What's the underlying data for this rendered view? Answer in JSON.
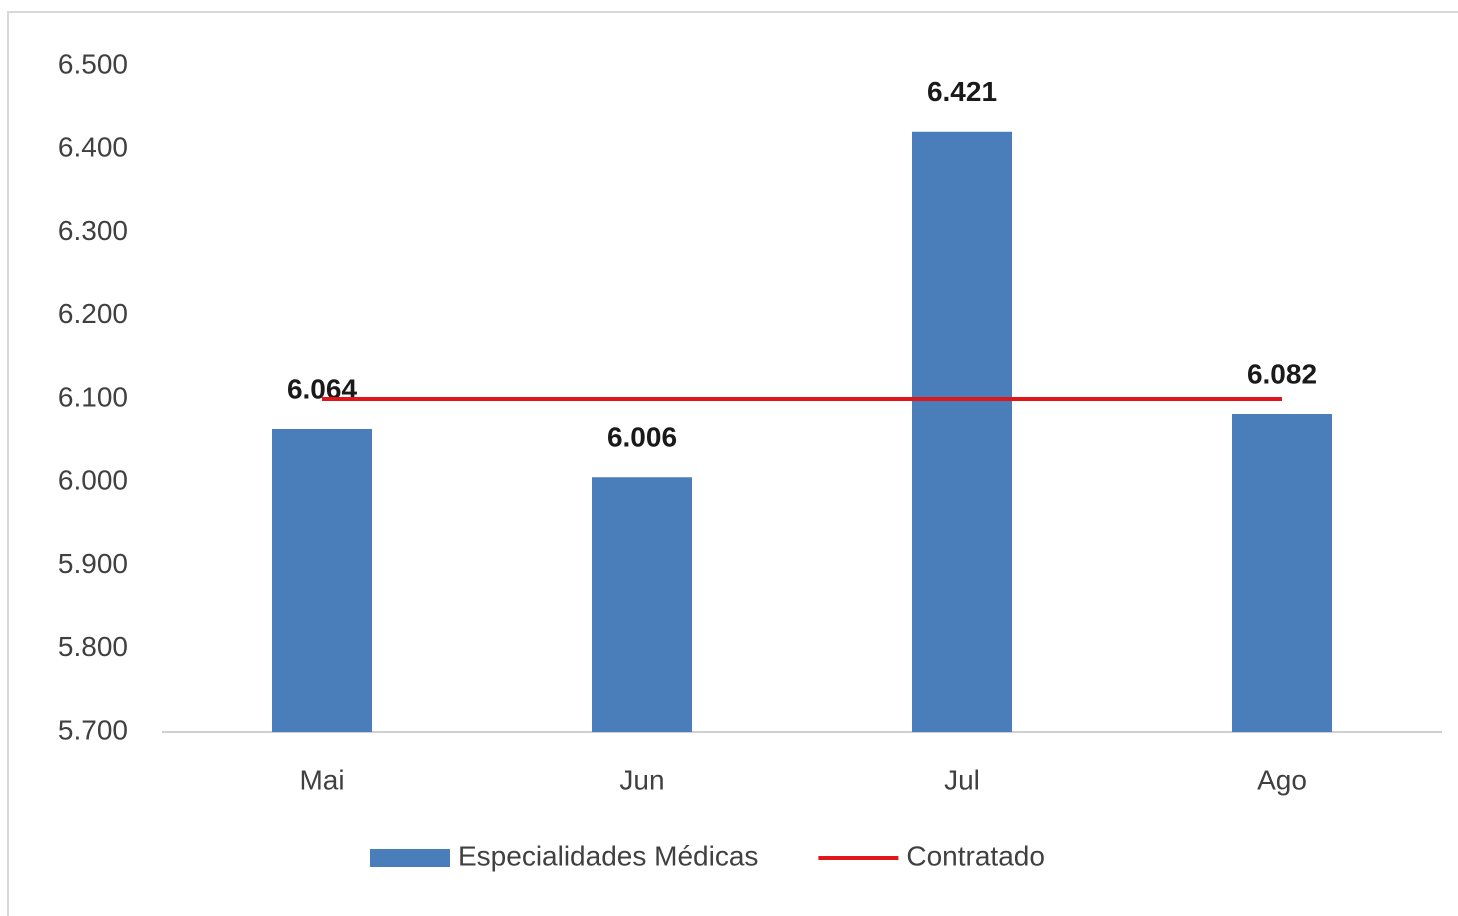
{
  "chart_data": {
    "type": "bar",
    "categories": [
      "Mai",
      "Jun",
      "Jul",
      "Ago"
    ],
    "series": [
      {
        "name": "Especialidades Médicas",
        "type": "bar",
        "color": "#4a7ebb",
        "values": [
          6064,
          6006,
          6421,
          6082
        ],
        "value_labels": [
          "6.064",
          "6.006",
          "6.421",
          "6.082"
        ]
      },
      {
        "name": "Contratado",
        "type": "line",
        "color": "#e0161b",
        "values": [
          6100,
          6100,
          6100,
          6100
        ]
      }
    ],
    "ylim": [
      5700,
      6500
    ],
    "yticks": [
      {
        "value": 5700,
        "label": "5.700"
      },
      {
        "value": 5800,
        "label": "5.800"
      },
      {
        "value": 5900,
        "label": "5.900"
      },
      {
        "value": 6000,
        "label": "6.000"
      },
      {
        "value": 6100,
        "label": "6.100"
      },
      {
        "value": 6200,
        "label": "6.200"
      },
      {
        "value": 6300,
        "label": "6.300"
      },
      {
        "value": 6400,
        "label": "6.400"
      },
      {
        "value": 6500,
        "label": "6.500"
      }
    ],
    "grid": false,
    "legend": "bottom"
  }
}
